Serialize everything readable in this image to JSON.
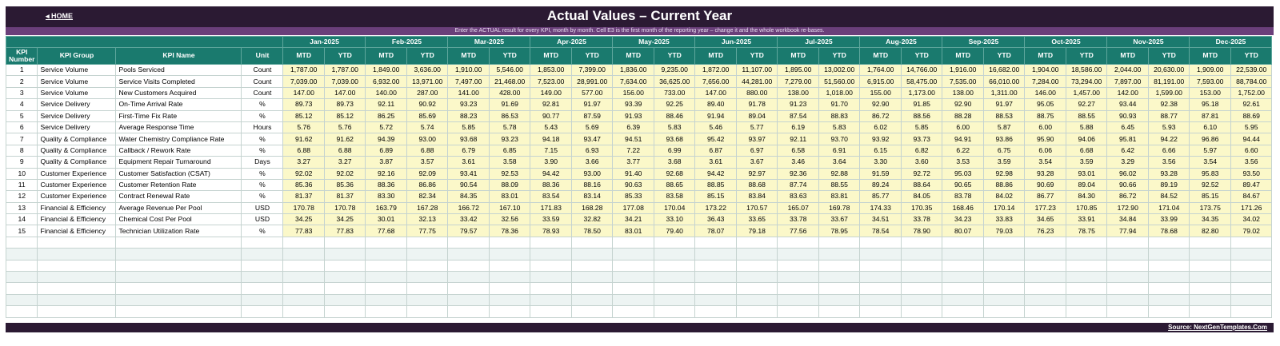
{
  "header": {
    "home_label": "◂ HOME",
    "title": "Actual Values  –  Current Year",
    "instructions": "Enter the ACTUAL result for every KPI, month by month. Cell E3 is the first month of the reporting year – change it and the whole workbook re-bases."
  },
  "columns": {
    "kpi_number": "KPI Number",
    "kpi_group": "KPI Group",
    "kpi_name": "KPI Name",
    "unit": "Unit",
    "mtd": "MTD",
    "ytd": "YTD"
  },
  "months": [
    "Jan-2025",
    "Feb-2025",
    "Mar-2025",
    "Apr-2025",
    "May-2025",
    "Jun-2025",
    "Jul-2025",
    "Aug-2025",
    "Sep-2025",
    "Oct-2025",
    "Nov-2025",
    "Dec-2025"
  ],
  "rows": [
    {
      "num": "1",
      "group": "Service Volume",
      "name": "Pools Serviced",
      "unit": "Count",
      "values": [
        "1,787.00",
        "1,787.00",
        "1,849.00",
        "3,636.00",
        "1,910.00",
        "5,546.00",
        "1,853.00",
        "7,399.00",
        "1,836.00",
        "9,235.00",
        "1,872.00",
        "11,107.00",
        "1,895.00",
        "13,002.00",
        "1,764.00",
        "14,766.00",
        "1,916.00",
        "16,682.00",
        "1,904.00",
        "18,586.00",
        "2,044.00",
        "20,630.00",
        "1,909.00",
        "22,539.00"
      ]
    },
    {
      "num": "2",
      "group": "Service Volume",
      "name": "Service Visits Completed",
      "unit": "Count",
      "values": [
        "7,039.00",
        "7,039.00",
        "6,932.00",
        "13,971.00",
        "7,497.00",
        "21,468.00",
        "7,523.00",
        "28,991.00",
        "7,634.00",
        "36,625.00",
        "7,656.00",
        "44,281.00",
        "7,279.00",
        "51,560.00",
        "6,915.00",
        "58,475.00",
        "7,535.00",
        "66,010.00",
        "7,284.00",
        "73,294.00",
        "7,897.00",
        "81,191.00",
        "7,593.00",
        "88,784.00"
      ]
    },
    {
      "num": "3",
      "group": "Service Volume",
      "name": "New Customers Acquired",
      "unit": "Count",
      "values": [
        "147.00",
        "147.00",
        "140.00",
        "287.00",
        "141.00",
        "428.00",
        "149.00",
        "577.00",
        "156.00",
        "733.00",
        "147.00",
        "880.00",
        "138.00",
        "1,018.00",
        "155.00",
        "1,173.00",
        "138.00",
        "1,311.00",
        "146.00",
        "1,457.00",
        "142.00",
        "1,599.00",
        "153.00",
        "1,752.00"
      ]
    },
    {
      "num": "4",
      "group": "Service Delivery",
      "name": "On-Time Arrival Rate",
      "unit": "%",
      "values": [
        "89.73",
        "89.73",
        "92.11",
        "90.92",
        "93.23",
        "91.69",
        "92.81",
        "91.97",
        "93.39",
        "92.25",
        "89.40",
        "91.78",
        "91.23",
        "91.70",
        "92.90",
        "91.85",
        "92.90",
        "91.97",
        "95.05",
        "92.27",
        "93.44",
        "92.38",
        "95.18",
        "92.61"
      ]
    },
    {
      "num": "5",
      "group": "Service Delivery",
      "name": "First-Time Fix Rate",
      "unit": "%",
      "values": [
        "85.12",
        "85.12",
        "86.25",
        "85.69",
        "88.23",
        "86.53",
        "90.77",
        "87.59",
        "91.93",
        "88.46",
        "91.94",
        "89.04",
        "87.54",
        "88.83",
        "86.72",
        "88.56",
        "88.28",
        "88.53",
        "88.75",
        "88.55",
        "90.93",
        "88.77",
        "87.81",
        "88.69"
      ]
    },
    {
      "num": "6",
      "group": "Service Delivery",
      "name": "Average Response Time",
      "unit": "Hours",
      "values": [
        "5.76",
        "5.76",
        "5.72",
        "5.74",
        "5.85",
        "5.78",
        "5.43",
        "5.69",
        "6.39",
        "5.83",
        "5.46",
        "5.77",
        "6.19",
        "5.83",
        "6.02",
        "5.85",
        "6.00",
        "5.87",
        "6.00",
        "5.88",
        "6.45",
        "5.93",
        "6.10",
        "5.95"
      ]
    },
    {
      "num": "7",
      "group": "Quality & Compliance",
      "name": "Water Chemistry Compliance Rate",
      "unit": "%",
      "values": [
        "91.62",
        "91.62",
        "94.39",
        "93.00",
        "93.68",
        "93.23",
        "94.18",
        "93.47",
        "94.51",
        "93.68",
        "95.42",
        "93.97",
        "92.11",
        "93.70",
        "93.92",
        "93.73",
        "94.91",
        "93.86",
        "95.90",
        "94.06",
        "95.81",
        "94.22",
        "96.86",
        "94.44"
      ]
    },
    {
      "num": "8",
      "group": "Quality & Compliance",
      "name": "Callback / Rework Rate",
      "unit": "%",
      "values": [
        "6.88",
        "6.88",
        "6.89",
        "6.88",
        "6.79",
        "6.85",
        "7.15",
        "6.93",
        "7.22",
        "6.99",
        "6.87",
        "6.97",
        "6.58",
        "6.91",
        "6.15",
        "6.82",
        "6.22",
        "6.75",
        "6.06",
        "6.68",
        "6.42",
        "6.66",
        "5.97",
        "6.60"
      ]
    },
    {
      "num": "9",
      "group": "Quality & Compliance",
      "name": "Equipment Repair Turnaround",
      "unit": "Days",
      "values": [
        "3.27",
        "3.27",
        "3.87",
        "3.57",
        "3.61",
        "3.58",
        "3.90",
        "3.66",
        "3.77",
        "3.68",
        "3.61",
        "3.67",
        "3.46",
        "3.64",
        "3.30",
        "3.60",
        "3.53",
        "3.59",
        "3.54",
        "3.59",
        "3.29",
        "3.56",
        "3.54",
        "3.56"
      ]
    },
    {
      "num": "10",
      "group": "Customer Experience",
      "name": "Customer Satisfaction (CSAT)",
      "unit": "%",
      "values": [
        "92.02",
        "92.02",
        "92.16",
        "92.09",
        "93.41",
        "92.53",
        "94.42",
        "93.00",
        "91.40",
        "92.68",
        "94.42",
        "92.97",
        "92.36",
        "92.88",
        "91.59",
        "92.72",
        "95.03",
        "92.98",
        "93.28",
        "93.01",
        "96.02",
        "93.28",
        "95.83",
        "93.50"
      ]
    },
    {
      "num": "11",
      "group": "Customer Experience",
      "name": "Customer Retention Rate",
      "unit": "%",
      "values": [
        "85.36",
        "85.36",
        "88.36",
        "86.86",
        "90.54",
        "88.09",
        "88.36",
        "88.16",
        "90.63",
        "88.65",
        "88.85",
        "88.68",
        "87.74",
        "88.55",
        "89.24",
        "88.64",
        "90.65",
        "88.86",
        "90.69",
        "89.04",
        "90.66",
        "89.19",
        "92.52",
        "89.47"
      ]
    },
    {
      "num": "12",
      "group": "Customer Experience",
      "name": "Contract Renewal Rate",
      "unit": "%",
      "values": [
        "81.37",
        "81.37",
        "83.30",
        "82.34",
        "84.35",
        "83.01",
        "83.54",
        "83.14",
        "85.33",
        "83.58",
        "85.15",
        "83.84",
        "83.63",
        "83.81",
        "85.77",
        "84.05",
        "83.78",
        "84.02",
        "86.77",
        "84.30",
        "86.72",
        "84.52",
        "85.15",
        "84.67"
      ]
    },
    {
      "num": "13",
      "group": "Financial & Efficiency",
      "name": "Average Revenue Per Pool",
      "unit": "USD",
      "values": [
        "170.78",
        "170.78",
        "163.79",
        "167.28",
        "166.72",
        "167.10",
        "171.83",
        "168.28",
        "177.08",
        "170.04",
        "173.22",
        "170.57",
        "165.07",
        "169.78",
        "174.33",
        "170.35",
        "168.46",
        "170.14",
        "177.23",
        "170.85",
        "172.90",
        "171.04",
        "173.75",
        "171.26"
      ]
    },
    {
      "num": "14",
      "group": "Financial & Efficiency",
      "name": "Chemical Cost Per Pool",
      "unit": "USD",
      "values": [
        "34.25",
        "34.25",
        "30.01",
        "32.13",
        "33.42",
        "32.56",
        "33.59",
        "32.82",
        "34.21",
        "33.10",
        "36.43",
        "33.65",
        "33.78",
        "33.67",
        "34.51",
        "33.78",
        "34.23",
        "33.83",
        "34.65",
        "33.91",
        "34.84",
        "33.99",
        "34.35",
        "34.02"
      ]
    },
    {
      "num": "15",
      "group": "Financial & Efficiency",
      "name": "Technician Utilization Rate",
      "unit": "%",
      "values": [
        "77.83",
        "77.83",
        "77.68",
        "77.75",
        "79.57",
        "78.36",
        "78.93",
        "78.50",
        "83.01",
        "79.40",
        "78.07",
        "79.18",
        "77.56",
        "78.95",
        "78.54",
        "78.90",
        "80.07",
        "79.03",
        "76.23",
        "78.75",
        "77.94",
        "78.68",
        "82.80",
        "79.02"
      ]
    }
  ],
  "footer": {
    "source": "Source: NextGenTemplates.Com"
  },
  "colors": {
    "title_bar": "#2b1a33",
    "instruction_bar": "#6a3f7a",
    "header_teal": "#1a7a6e",
    "value_cell": "#fbf8c9",
    "empty_row": "#edf4f3"
  }
}
